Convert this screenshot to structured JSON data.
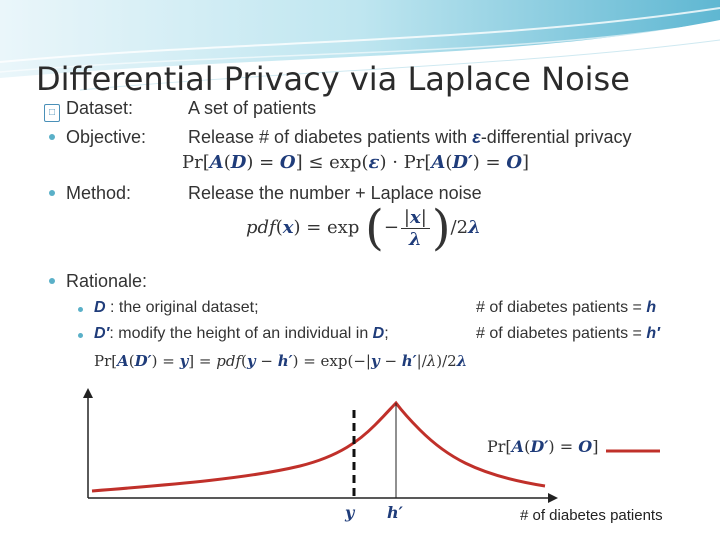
{
  "title": "Differential Privacy via Laplace Noise",
  "glyph": "□",
  "bullets": {
    "dataset": {
      "label": "Dataset:",
      "text": "A set of patients"
    },
    "objective": {
      "label": "Objective:",
      "text": "Release # of diabetes patients with ",
      "eps": "ε",
      "tail": "-differential privacy"
    },
    "method": {
      "label": "Method:",
      "text": "Release the number + Laplace noise"
    },
    "rationale": {
      "label": "Rationale:"
    }
  },
  "sub": {
    "d_desc": ": the original dataset;",
    "d_count": "# of diabetes patients = ",
    "dp_desc": ": modify the height of an individual in ",
    "dp_count": "# of diabetes patients = "
  },
  "chart": {
    "xlabel": "# of diabetes patients",
    "tick_y": "y",
    "tick_h": "h′",
    "curve_color": "#c0302a",
    "line_color": "#222222"
  }
}
